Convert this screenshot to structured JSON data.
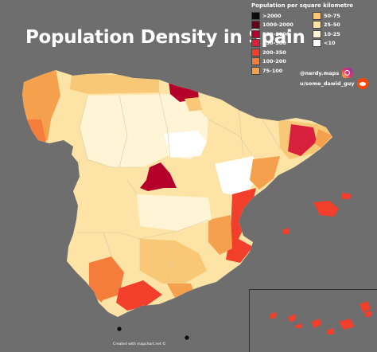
{
  "title": "Population Density in Spain",
  "legend": {
    "title": "Population per square kilometre",
    "items": [
      {
        "label": ">2000",
        "color": "#0c0c0c"
      },
      {
        "label": "1000-2000",
        "color": "#6b0019"
      },
      {
        "label": "500-1000",
        "color": "#b5002b"
      },
      {
        "label": "350-500",
        "color": "#d8203c"
      },
      {
        "label": "200-350",
        "color": "#f23f2c"
      },
      {
        "label": "100-200",
        "color": "#f57d3b"
      },
      {
        "label": "75-100",
        "color": "#f5a04c"
      },
      {
        "label": "50-75",
        "color": "#f9c877"
      },
      {
        "label": "25-50",
        "color": "#fde4a6"
      },
      {
        "label": "10-25",
        "color": "#fff5d6"
      },
      {
        "label": "<10",
        "color": "#ffffff"
      }
    ]
  },
  "social": {
    "instagram": "@nerdy.maps",
    "instagram_icon": "instagram-icon",
    "reddit": "u/some_dawid_guy",
    "reddit_icon": "reddit-icon"
  },
  "credit": "Created with mapchart.net ©"
}
